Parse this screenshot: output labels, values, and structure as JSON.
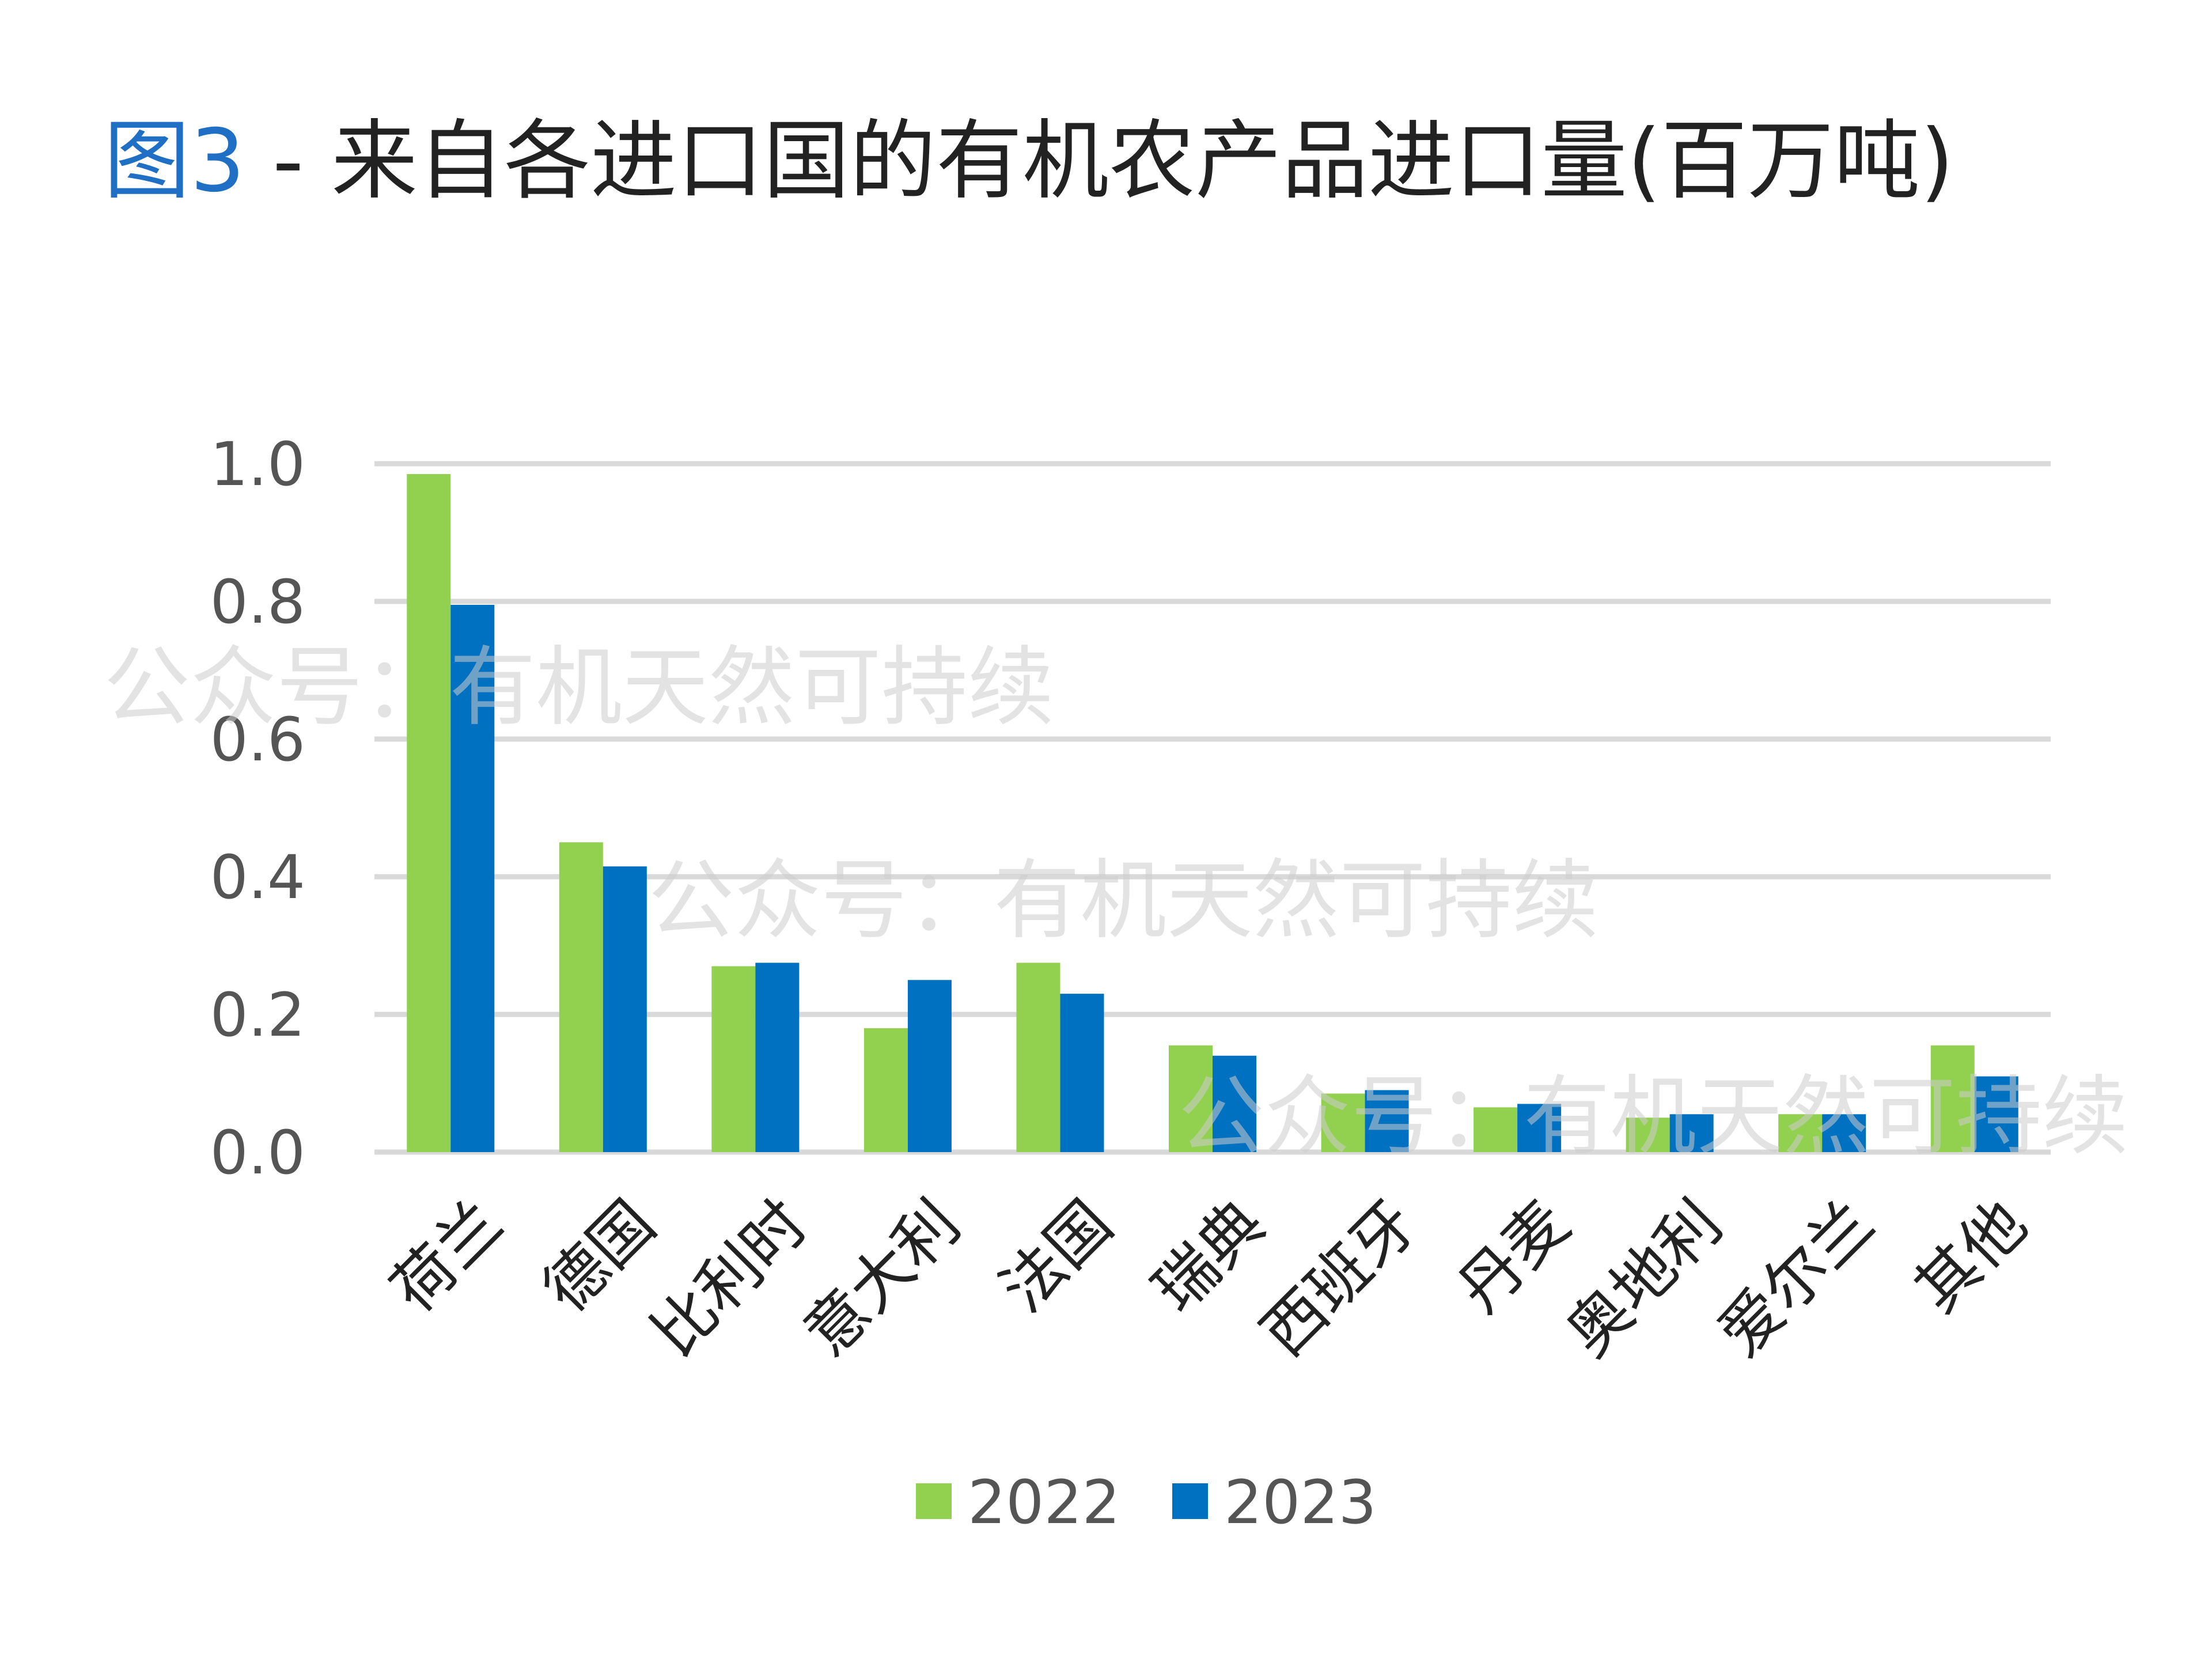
{
  "title": {
    "figure_label": "图3",
    "separator": " - ",
    "text": "来自各进口国的有机农产品进口量(百万吨)"
  },
  "watermark": "公众号：有机天然可持续",
  "colors": {
    "series_2022": "#92d050",
    "series_2023": "#0070c0",
    "grid": "#d9d9d9",
    "title_accent": "#1f6fc5"
  },
  "chart_data": {
    "type": "bar",
    "title": "图3 - 来自各进口国的有机农产品进口量(百万吨)",
    "xlabel": "",
    "ylabel": "",
    "ylim": [
      0,
      1.0
    ],
    "yticks": [
      "0.0",
      "0.2",
      "0.4",
      "0.6",
      "0.8",
      "1.0"
    ],
    "grid": true,
    "legend_position": "bottom",
    "categories": [
      "荷兰",
      "德国",
      "比利时",
      "意大利",
      "法国",
      "瑞典",
      "西班牙",
      "丹麦",
      "奥地利",
      "爱尔兰",
      "其他"
    ],
    "series": [
      {
        "name": "2022",
        "color": "#92d050",
        "values": [
          0.985,
          0.45,
          0.27,
          0.18,
          0.275,
          0.155,
          0.085,
          0.065,
          0.05,
          0.055,
          0.155
        ]
      },
      {
        "name": "2023",
        "color": "#0070c0",
        "values": [
          0.795,
          0.415,
          0.275,
          0.25,
          0.23,
          0.14,
          0.09,
          0.07,
          0.055,
          0.055,
          0.11
        ]
      }
    ]
  }
}
